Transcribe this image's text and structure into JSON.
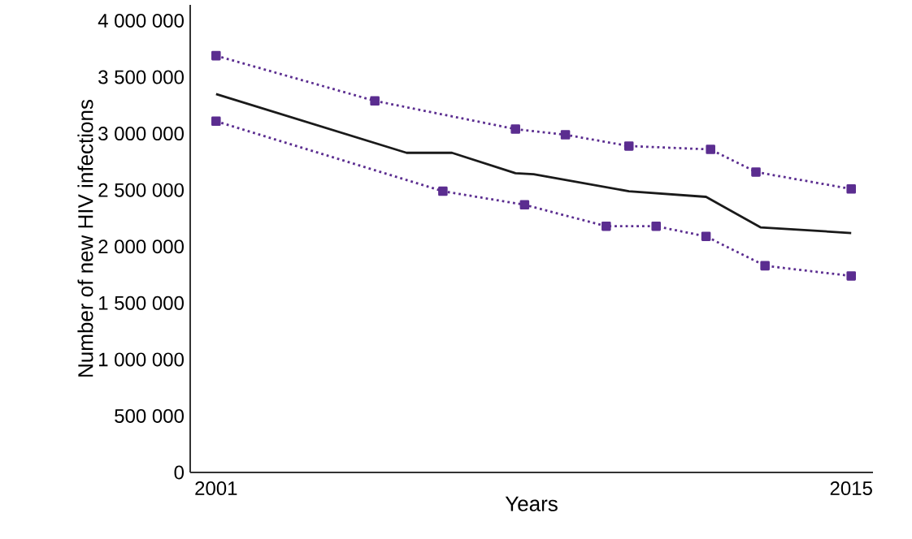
{
  "chart_data": {
    "type": "line",
    "xlabel": "Years",
    "ylabel": "Number of new HIV infections",
    "xlim": [
      2000.43,
      2015.48
    ],
    "ylim": [
      0,
      4140000
    ],
    "xticks": [
      2001,
      2015
    ],
    "yticks": [
      {
        "value": 0,
        "label": "0"
      },
      {
        "value": 500000,
        "label": "500 000"
      },
      {
        "value": 1000000,
        "label": "1 000 000"
      },
      {
        "value": 1500000,
        "label": "1 500 000"
      },
      {
        "value": 2000000,
        "label": "2 000 000"
      },
      {
        "value": 2500000,
        "label": "2 500 000"
      },
      {
        "value": 3000000,
        "label": "3 000 000"
      },
      {
        "value": 3500000,
        "label": "3 500 000"
      },
      {
        "value": 4000000,
        "label": "4 000 000"
      }
    ],
    "series": [
      {
        "color": "#5b2d90",
        "line_style": "dotted",
        "marker": "square",
        "x": [
          2001,
          2004.5,
          2007.6,
          2008.7,
          2010.1,
          2011.9,
          2012.9,
          2015
        ],
        "values": [
          3690000,
          3290000,
          3040000,
          2990000,
          2890000,
          2860000,
          2660000,
          2510000
        ]
      },
      {
        "color": "#1a1a1a",
        "line_style": "solid",
        "marker": "none",
        "x": [
          2001,
          2005.2,
          2006.2,
          2007.6,
          2008,
          2010.1,
          2011.8,
          2013,
          2015
        ],
        "values": [
          3350000,
          2830000,
          2830000,
          2650000,
          2640000,
          2490000,
          2440000,
          2170000,
          2120000
        ]
      },
      {
        "color": "#5b2d90",
        "line_style": "dotted",
        "marker": "square",
        "x": [
          2001,
          2006,
          2007.8,
          2009.6,
          2010.7,
          2011.8,
          2013.1,
          2015
        ],
        "values": [
          3110000,
          2490000,
          2370000,
          2180000,
          2180000,
          2090000,
          1830000,
          1740000
        ]
      }
    ]
  }
}
